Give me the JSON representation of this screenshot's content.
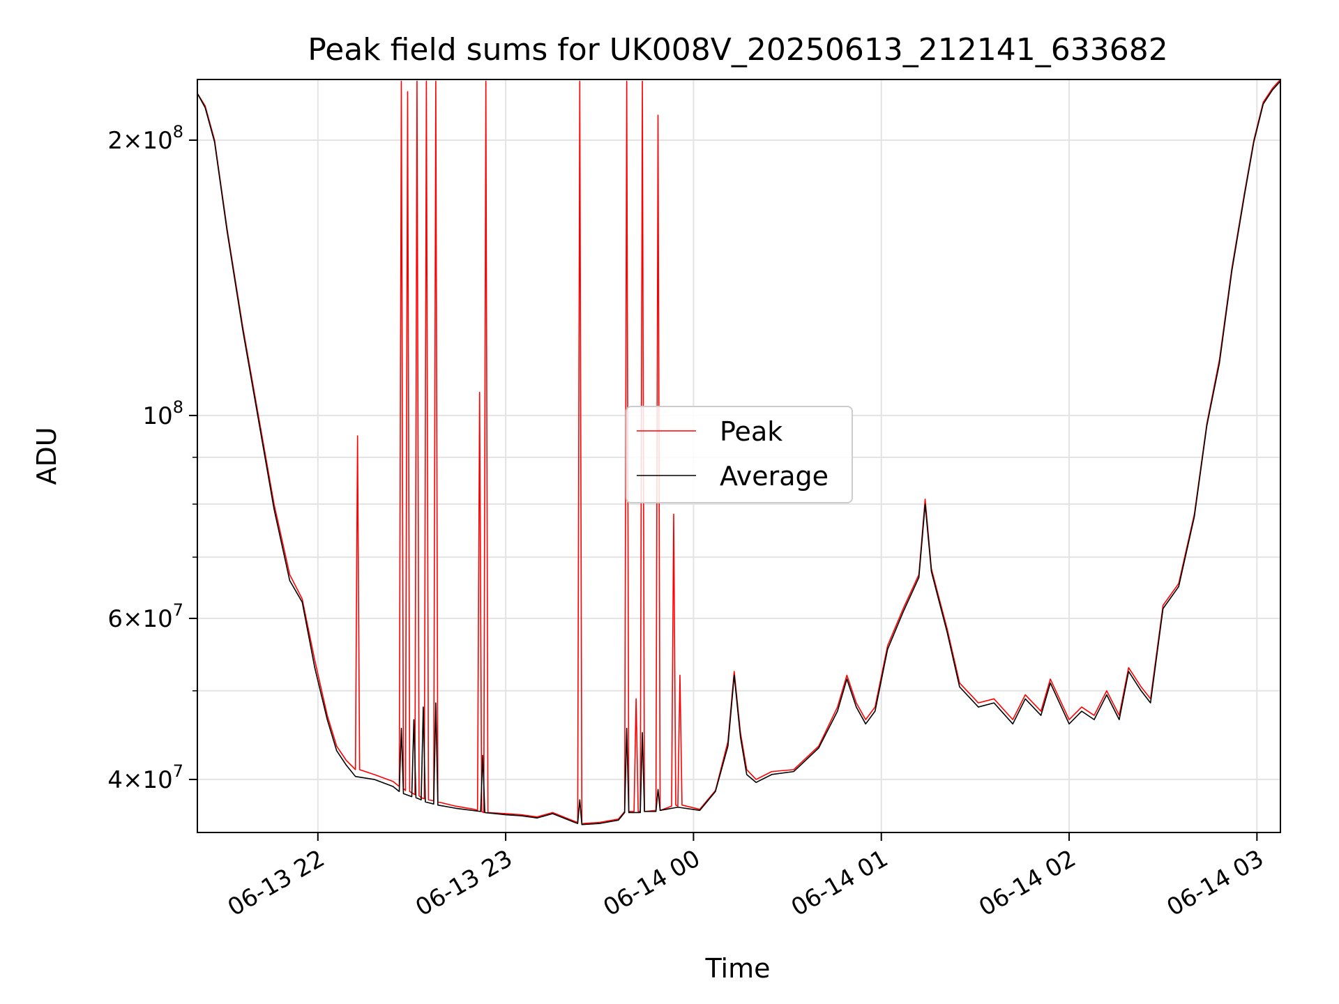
{
  "chart_data": {
    "type": "line",
    "title": "Peak field sums for UK008V_20250613_212141_633682",
    "xlabel": "Time",
    "ylabel": "ADU",
    "x_axis": "datetime",
    "y_scale": "log",
    "xlim": [
      "2025-06-13T21:21:30",
      "2025-06-14T03:07:30"
    ],
    "ylim": [
      35000000,
      233000000
    ],
    "grid": true,
    "legend_position": "center",
    "x_ticks": [
      {
        "value": "2025-06-13T22:00",
        "label": "06-13 22"
      },
      {
        "value": "2025-06-13T23:00",
        "label": "06-13 23"
      },
      {
        "value": "2025-06-14T00:00",
        "label": "06-14 00"
      },
      {
        "value": "2025-06-14T01:00",
        "label": "06-14 01"
      },
      {
        "value": "2025-06-14T02:00",
        "label": "06-14 02"
      },
      {
        "value": "2025-06-14T03:00",
        "label": "06-14 03"
      }
    ],
    "y_major_ticks": [
      {
        "value": 40000000,
        "mant": "4",
        "exp": "7"
      },
      {
        "value": 60000000,
        "mant": "6",
        "exp": "7"
      },
      {
        "value": 100000000,
        "mant": "",
        "exp": "8"
      },
      {
        "value": 200000000,
        "mant": "2",
        "exp": "8"
      }
    ],
    "y_minor_ticks": [
      50000000,
      70000000,
      80000000,
      90000000
    ],
    "series": [
      {
        "name": "Peak",
        "color": "#ff0000",
        "x": [
          "2025-06-13T21:21:30",
          "2025-06-13T21:24",
          "2025-06-13T21:27",
          "2025-06-13T21:31",
          "2025-06-13T21:36",
          "2025-06-13T21:41",
          "2025-06-13T21:46",
          "2025-06-13T21:51",
          "2025-06-13T21:55",
          "2025-06-13T21:59",
          "2025-06-13T22:03",
          "2025-06-13T22:06",
          "2025-06-13T22:09",
          "2025-06-13T22:12",
          "2025-06-13T22:12:40",
          "2025-06-13T22:13:20",
          "2025-06-13T22:18",
          "2025-06-13T22:24",
          "2025-06-13T22:26",
          "2025-06-13T22:26:40",
          "2025-06-13T22:27:20",
          "2025-06-13T22:28",
          "2025-06-13T22:28:40",
          "2025-06-13T22:29:20",
          "2025-06-13T22:31",
          "2025-06-13T22:31:40",
          "2025-06-13T22:32:20",
          "2025-06-13T22:33",
          "2025-06-13T22:34",
          "2025-06-13T22:34:40",
          "2025-06-13T22:35:20",
          "2025-06-13T22:37",
          "2025-06-13T22:37:40",
          "2025-06-13T22:38:20",
          "2025-06-13T22:44",
          "2025-06-13T22:50",
          "2025-06-13T22:51",
          "2025-06-13T22:51:40",
          "2025-06-13T22:52:20",
          "2025-06-13T22:53",
          "2025-06-13T22:53:40",
          "2025-06-13T22:54:20",
          "2025-06-13T23:00",
          "2025-06-13T23:05",
          "2025-06-13T23:10",
          "2025-06-13T23:15",
          "2025-06-13T23:22",
          "2025-06-13T23:23",
          "2025-06-13T23:23:40",
          "2025-06-13T23:24:20",
          "2025-06-13T23:30",
          "2025-06-13T23:36",
          "2025-06-13T23:38",
          "2025-06-13T23:38:40",
          "2025-06-13T23:39:20",
          "2025-06-13T23:41",
          "2025-06-13T23:41:40",
          "2025-06-13T23:42:20",
          "2025-06-13T23:43",
          "2025-06-13T23:43:40",
          "2025-06-13T23:44:20",
          "2025-06-13T23:48",
          "2025-06-13T23:48:40",
          "2025-06-13T23:49:20",
          "2025-06-13T23:53",
          "2025-06-13T23:53:40",
          "2025-06-13T23:54:20",
          "2025-06-13T23:55",
          "2025-06-13T23:55:40",
          "2025-06-13T23:56:20",
          "2025-06-14T00:02",
          "2025-06-14T00:07",
          "2025-06-14T00:11",
          "2025-06-14T00:13",
          "2025-06-14T00:15",
          "2025-06-14T00:17",
          "2025-06-14T00:20",
          "2025-06-14T00:25",
          "2025-06-14T00:32",
          "2025-06-14T00:40",
          "2025-06-14T00:46",
          "2025-06-14T00:49",
          "2025-06-14T00:52",
          "2025-06-14T00:55",
          "2025-06-14T00:58",
          "2025-06-14T01:02",
          "2025-06-14T01:07",
          "2025-06-14T01:12",
          "2025-06-14T01:14",
          "2025-06-14T01:16",
          "2025-06-14T01:18",
          "2025-06-14T01:21",
          "2025-06-14T01:25",
          "2025-06-14T01:31",
          "2025-06-14T01:36",
          "2025-06-14T01:42",
          "2025-06-14T01:46",
          "2025-06-14T01:51",
          "2025-06-14T01:54",
          "2025-06-14T02:00",
          "2025-06-14T02:04",
          "2025-06-14T02:08",
          "2025-06-14T02:12",
          "2025-06-14T02:16",
          "2025-06-14T02:19",
          "2025-06-14T02:23",
          "2025-06-14T02:26",
          "2025-06-14T02:30",
          "2025-06-14T02:35",
          "2025-06-14T02:40",
          "2025-06-14T02:44",
          "2025-06-14T02:48",
          "2025-06-14T02:52",
          "2025-06-14T02:56",
          "2025-06-14T02:59",
          "2025-06-14T03:02",
          "2025-06-14T03:05",
          "2025-06-14T03:07:30"
        ],
        "y": [
          225000000,
          218000000,
          200000000,
          160000000,
          125000000,
          100000000,
          80000000,
          67000000,
          63000000,
          54000000,
          47000000,
          43500000,
          42000000,
          41000000,
          95000000,
          41000000,
          40500000,
          39800000,
          39300000,
          232000000,
          39100000,
          38900000,
          226000000,
          38800000,
          38500000,
          232000000,
          38400000,
          38200000,
          38100000,
          232000000,
          38000000,
          37900000,
          232000000,
          37800000,
          37400000,
          37100000,
          37000000,
          106000000,
          36900000,
          36800000,
          232000000,
          36800000,
          36700000,
          36600000,
          36400000,
          36800000,
          36000000,
          35900000,
          232000000,
          35800000,
          35900000,
          36200000,
          36900000,
          232000000,
          36900000,
          36900000,
          49000000,
          36900000,
          36900000,
          232000000,
          36900000,
          37000000,
          213000000,
          37000000,
          37400000,
          78000000,
          37500000,
          37400000,
          52000000,
          37500000,
          37100000,
          38900000,
          44000000,
          52500000,
          45000000,
          41000000,
          40000000,
          40800000,
          41000000,
          43500000,
          48000000,
          52000000,
          48500000,
          46500000,
          48000000,
          56000000,
          61500000,
          67000000,
          81000000,
          68000000,
          64000000,
          58500000,
          51000000,
          48500000,
          49000000,
          46500000,
          49500000,
          47500000,
          51500000,
          46500000,
          48000000,
          47000000,
          50000000,
          47000000,
          53000000,
          50500000,
          49000000,
          62000000,
          65500000,
          78000000,
          98000000,
          115000000,
          145000000,
          175000000,
          200000000,
          220000000,
          228000000,
          233000000
        ]
      },
      {
        "name": "Average",
        "color": "#000000",
        "x": [
          "2025-06-13T21:21:30",
          "2025-06-13T21:24",
          "2025-06-13T21:27",
          "2025-06-13T21:31",
          "2025-06-13T21:36",
          "2025-06-13T21:41",
          "2025-06-13T21:46",
          "2025-06-13T21:51",
          "2025-06-13T21:55",
          "2025-06-13T21:59",
          "2025-06-13T22:03",
          "2025-06-13T22:06",
          "2025-06-13T22:09",
          "2025-06-13T22:12",
          "2025-06-13T22:18",
          "2025-06-13T22:24",
          "2025-06-13T22:26",
          "2025-06-13T22:26:40",
          "2025-06-13T22:27:20",
          "2025-06-13T22:30",
          "2025-06-13T22:30:40",
          "2025-06-13T22:31:20",
          "2025-06-13T22:33",
          "2025-06-13T22:33:40",
          "2025-06-13T22:34:20",
          "2025-06-13T22:37",
          "2025-06-13T22:37:40",
          "2025-06-13T22:38:20",
          "2025-06-13T22:44",
          "2025-06-13T22:52",
          "2025-06-13T22:52:40",
          "2025-06-13T22:53:20",
          "2025-06-13T23:00",
          "2025-06-13T23:05",
          "2025-06-13T23:10",
          "2025-06-13T23:15",
          "2025-06-13T23:22",
          "2025-06-13T23:23",
          "2025-06-13T23:23:40",
          "2025-06-13T23:24:20",
          "2025-06-13T23:30",
          "2025-06-13T23:36",
          "2025-06-13T23:38",
          "2025-06-13T23:38:40",
          "2025-06-13T23:39:20",
          "2025-06-13T23:43",
          "2025-06-13T23:43:40",
          "2025-06-13T23:44:20",
          "2025-06-13T23:48",
          "2025-06-13T23:48:40",
          "2025-06-13T23:49:20",
          "2025-06-13T23:55",
          "2025-06-14T00:02",
          "2025-06-14T00:07",
          "2025-06-14T00:11",
          "2025-06-14T00:13",
          "2025-06-14T00:15",
          "2025-06-14T00:17",
          "2025-06-14T00:20",
          "2025-06-14T00:25",
          "2025-06-14T00:32",
          "2025-06-14T00:40",
          "2025-06-14T00:46",
          "2025-06-14T00:49",
          "2025-06-14T00:52",
          "2025-06-14T00:55",
          "2025-06-14T00:58",
          "2025-06-14T01:02",
          "2025-06-14T01:07",
          "2025-06-14T01:12",
          "2025-06-14T01:14",
          "2025-06-14T01:16",
          "2025-06-14T01:18",
          "2025-06-14T01:21",
          "2025-06-14T01:25",
          "2025-06-14T01:31",
          "2025-06-14T01:36",
          "2025-06-14T01:42",
          "2025-06-14T01:46",
          "2025-06-14T01:51",
          "2025-06-14T01:54",
          "2025-06-14T02:00",
          "2025-06-14T02:04",
          "2025-06-14T02:08",
          "2025-06-14T02:12",
          "2025-06-14T02:16",
          "2025-06-14T02:19",
          "2025-06-14T02:23",
          "2025-06-14T02:26",
          "2025-06-14T02:30",
          "2025-06-14T02:35",
          "2025-06-14T02:40",
          "2025-06-14T02:44",
          "2025-06-14T02:48",
          "2025-06-14T02:52",
          "2025-06-14T02:56",
          "2025-06-14T02:59",
          "2025-06-14T03:02",
          "2025-06-14T03:05",
          "2025-06-14T03:07:30"
        ],
        "y": [
          225000000,
          217000000,
          199000000,
          159000000,
          124000000,
          99000000,
          79000000,
          66000000,
          62500000,
          53000000,
          46500000,
          43000000,
          41500000,
          40300000,
          40000000,
          39300000,
          38800000,
          45500000,
          38600000,
          38300000,
          46500000,
          38200000,
          38000000,
          48000000,
          37800000,
          37600000,
          48500000,
          37500000,
          37200000,
          36900000,
          42500000,
          36800000,
          36600000,
          36500000,
          36300000,
          36700000,
          35900000,
          35800000,
          38000000,
          35700000,
          35800000,
          36100000,
          36800000,
          45500000,
          36800000,
          36800000,
          45000000,
          36900000,
          36900000,
          39000000,
          37000000,
          37300000,
          37000000,
          38800000,
          43500000,
          52000000,
          44500000,
          40500000,
          39700000,
          40500000,
          40800000,
          43300000,
          47500000,
          51500000,
          48000000,
          46000000,
          47500000,
          55500000,
          61000000,
          66500000,
          80000000,
          67500000,
          63500000,
          58000000,
          50500000,
          48000000,
          48500000,
          46000000,
          49000000,
          47000000,
          51000000,
          46000000,
          47500000,
          46500000,
          49500000,
          46500000,
          52500000,
          50000000,
          48500000,
          61500000,
          65000000,
          77500000,
          97500000,
          114000000,
          144000000,
          174000000,
          199000000,
          219000000,
          227000000,
          232000000
        ]
      }
    ]
  }
}
